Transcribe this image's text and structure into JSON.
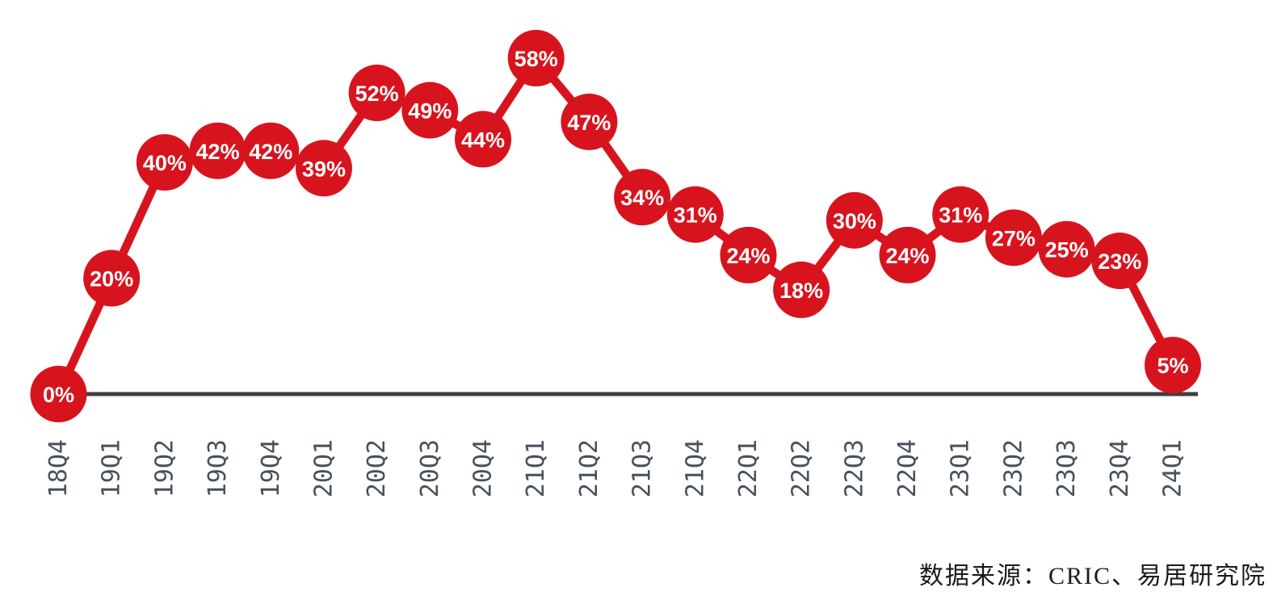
{
  "chart_data": {
    "type": "line",
    "categories": [
      "18Q4",
      "19Q1",
      "19Q2",
      "19Q3",
      "19Q4",
      "20Q1",
      "20Q2",
      "20Q3",
      "20Q4",
      "21Q1",
      "21Q2",
      "21Q3",
      "21Q4",
      "22Q1",
      "22Q2",
      "22Q3",
      "22Q4",
      "23Q1",
      "23Q2",
      "23Q3",
      "23Q4",
      "24Q1"
    ],
    "values": [
      0,
      20,
      40,
      42,
      42,
      39,
      52,
      49,
      44,
      58,
      47,
      34,
      31,
      24,
      18,
      30,
      24,
      31,
      27,
      25,
      23,
      5
    ],
    "point_labels": [
      "0%",
      "20%",
      "40%",
      "42%",
      "42%",
      "39%",
      "52%",
      "49%",
      "44%",
      "58%",
      "47%",
      "34%",
      "31%",
      "24%",
      "18%",
      "30%",
      "24%",
      "31%",
      "27%",
      "25%",
      "23%",
      "5%"
    ],
    "title": "",
    "xlabel": "",
    "ylabel": "",
    "ylim": [
      0,
      58
    ],
    "grid": false,
    "legend_position": "none",
    "marker_style": "filled-circle-with-label",
    "tick_label_rotation": -90
  },
  "source_note": {
    "text": "数据来源：CRIC、易居研究院"
  },
  "colors": {
    "line": "#d7141e",
    "marker_fill": "#d7141e",
    "marker_text": "#ffffff",
    "axis_line": "#3f3f3f",
    "tick_label": "#47515c",
    "source_text": "#1a1a1a",
    "background": "#ffffff"
  }
}
